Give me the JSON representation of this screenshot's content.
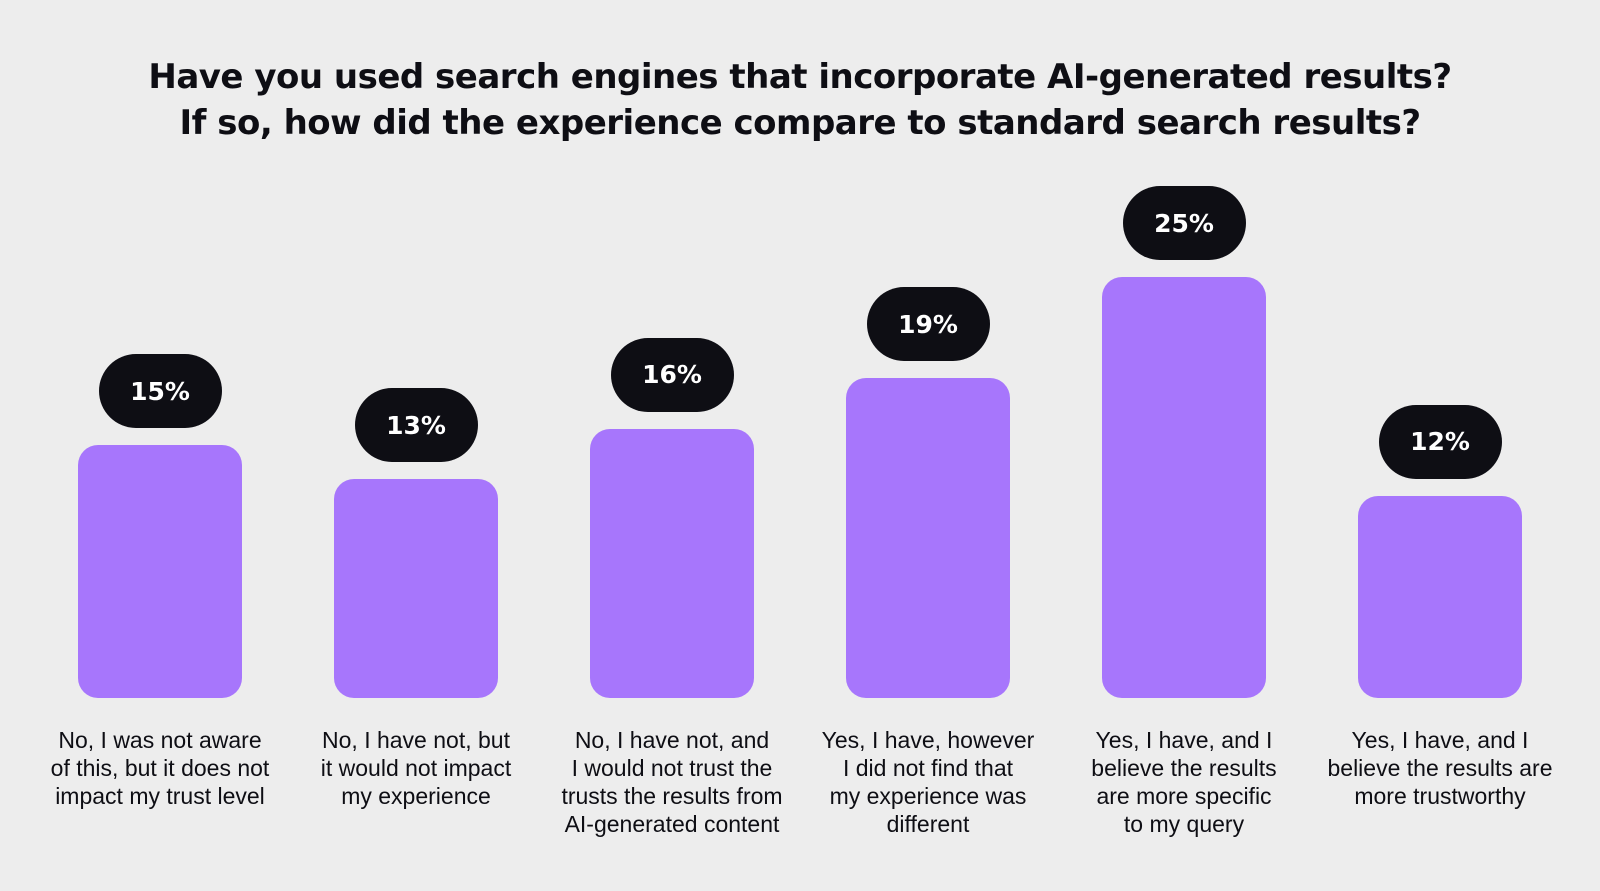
{
  "chart_data": {
    "type": "bar",
    "title_lines": [
      "Have you used search engines that incorporate AI-generated results?",
      "If so, how did the experience compare to standard search results?"
    ],
    "categories": [
      "No, I was not aware\nof this, but it does not\nimpact my trust level",
      "No, I have not, but\nit would not impact\nmy experience",
      "No, I have not, and\nI would not trust the\ntrusts the results from\nAI-generated content",
      "Yes, I have, however\nI did not find that\nmy experience was\ndifferent",
      "Yes, I have, and I\nbelieve the results\nare more specific\nto my query",
      "Yes, I have, and I\nbelieve the results are\nmore trustworthy"
    ],
    "values": [
      15,
      13,
      16,
      19,
      25,
      12
    ],
    "value_labels": [
      "15%",
      "13%",
      "16%",
      "19%",
      "25%",
      "12%"
    ],
    "unit": "%",
    "ylim": [
      0,
      25
    ],
    "grid": false,
    "legend": "none",
    "colors": {
      "bar": "#a776fc",
      "label_pill": "#0e0e14",
      "label_text": "#ffffff",
      "background": "#ededed"
    }
  }
}
